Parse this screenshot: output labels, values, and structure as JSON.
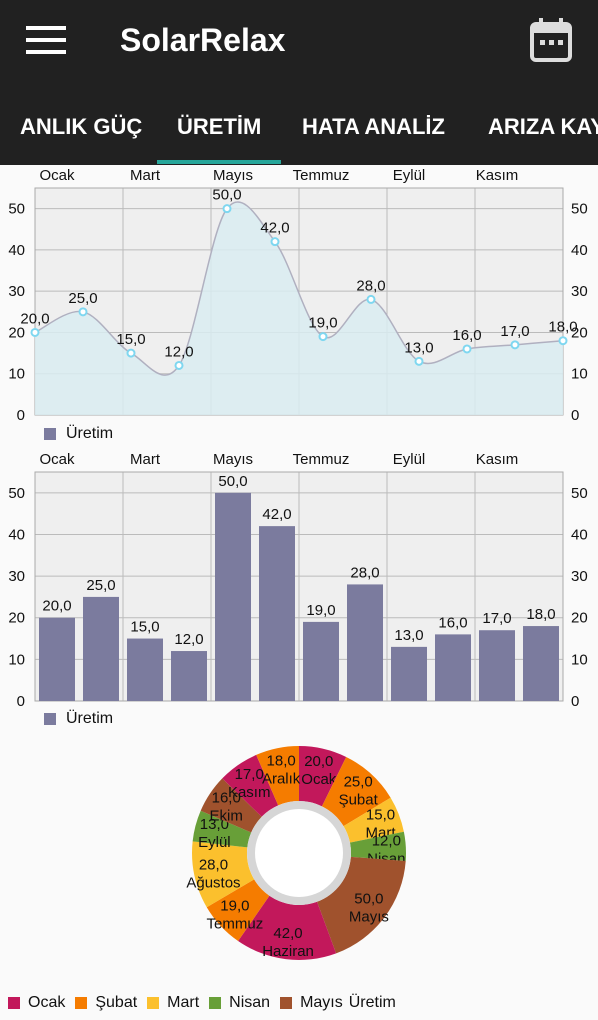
{
  "app": {
    "title": "SolarRelax"
  },
  "tabs": [
    {
      "label": "ANLIK GÜÇ"
    },
    {
      "label": "ÜRETİM"
    },
    {
      "label": "HATA ANALİZ"
    },
    {
      "label": "ARIZA KAY"
    }
  ],
  "selected_tab": 1,
  "colors": {
    "appbar": "#212121",
    "accent": "#26a69a",
    "bar": "#7b7b9e",
    "area_fill": "#d9ecf1",
    "line": "#b0b0c0",
    "point": "#7fd7f0"
  },
  "chart_data": [
    {
      "type": "area",
      "top_labels": [
        "Ocak",
        "Mart",
        "Mayıs",
        "Temmuz",
        "Eylül",
        "Kasım"
      ],
      "values": [
        20.0,
        25.0,
        15.0,
        12.0,
        50.0,
        42.0,
        19.0,
        28.0,
        13.0,
        16.0,
        17.0,
        18.0
      ],
      "value_labels": [
        "20,0",
        "25,0",
        "15,0",
        "12,0",
        "50,0",
        "42,0",
        "19,0",
        "28,0",
        "13,0",
        "16,0",
        "17,0",
        "18,0"
      ],
      "y_ticks": [
        "0",
        "10",
        "20",
        "30",
        "40",
        "50"
      ],
      "ylim": [
        0,
        55
      ],
      "legend": "Üretim",
      "grid": true
    },
    {
      "type": "bar",
      "top_labels": [
        "Ocak",
        "Mart",
        "Mayıs",
        "Temmuz",
        "Eylül",
        "Kasım"
      ],
      "values": [
        20.0,
        25.0,
        15.0,
        12.0,
        50.0,
        42.0,
        19.0,
        28.0,
        13.0,
        16.0,
        17.0,
        18.0
      ],
      "value_labels": [
        "20,0",
        "25,0",
        "15,0",
        "12,0",
        "50,0",
        "42,0",
        "19,0",
        "28,0",
        "13,0",
        "16,0",
        "17,0",
        "18,0"
      ],
      "y_ticks": [
        "0",
        "10",
        "20",
        "30",
        "40",
        "50"
      ],
      "ylim": [
        0,
        55
      ],
      "legend": "Üretim",
      "grid": true
    },
    {
      "type": "pie",
      "categories": [
        "Ocak",
        "Şubat",
        "Mart",
        "Nisan",
        "Mayıs",
        "Haziran",
        "Temmuz",
        "Ağustos",
        "Eylül",
        "Ekim",
        "Kasım",
        "Aralık"
      ],
      "values": [
        20.0,
        25.0,
        15.0,
        12.0,
        50.0,
        42.0,
        19.0,
        28.0,
        13.0,
        16.0,
        17.0,
        18.0
      ],
      "value_labels": [
        "20,0",
        "25,0",
        "15,0",
        "12,0",
        "50,0",
        "42,0",
        "19,0",
        "28,0",
        "13,0",
        "16,0",
        "17,0",
        "18,0"
      ],
      "colors": [
        "#c2185b",
        "#f57c00",
        "#fbc02d",
        "#689f38",
        "#a0522d",
        "#c2185b",
        "#f57c00",
        "#fbc02d",
        "#689f38",
        "#a0522d",
        "#c2185b",
        "#f57c00"
      ],
      "legend_items": [
        {
          "label": "Ocak",
          "color": "#c2185b"
        },
        {
          "label": "Şubat",
          "color": "#f57c00"
        },
        {
          "label": "Mart",
          "color": "#fbc02d"
        },
        {
          "label": "Nisan",
          "color": "#689f38"
        },
        {
          "label": "Mayıs",
          "color": "#a0522d"
        }
      ],
      "legend_title": "Üretim"
    }
  ]
}
